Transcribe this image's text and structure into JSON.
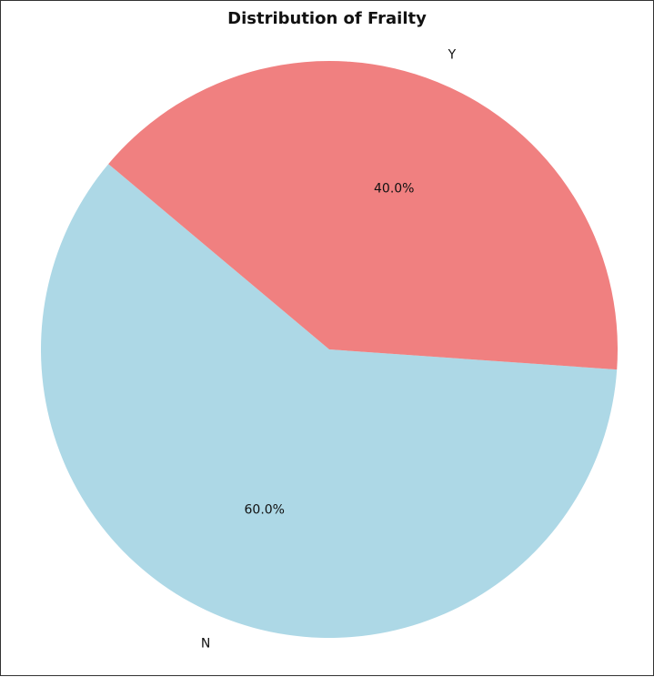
{
  "chart_data": {
    "type": "pie",
    "title": "Distribution of Frailty",
    "categories": [
      "N",
      "Y"
    ],
    "values": [
      60.0,
      40.0
    ],
    "percent_labels": [
      "60.0%",
      "40.0%"
    ],
    "colors": [
      "#add8e6",
      "#f08080"
    ],
    "start_angle_deg": 140,
    "legend": "none"
  }
}
